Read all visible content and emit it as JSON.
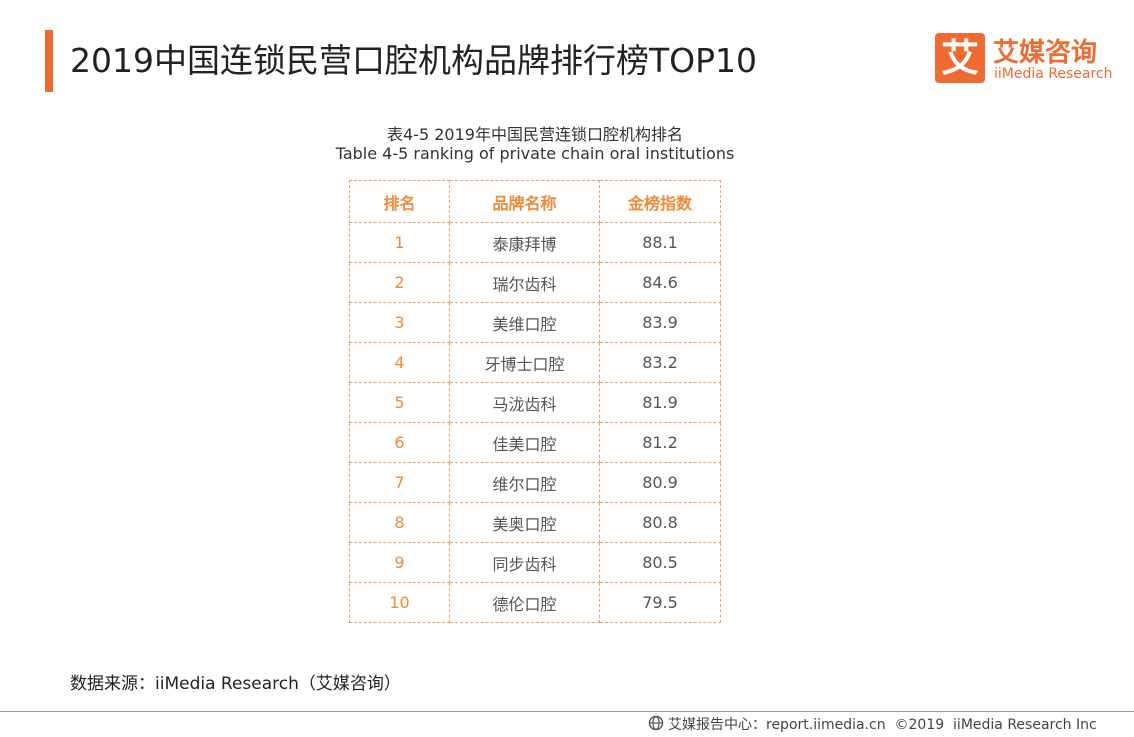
{
  "header": {
    "title": "2019中国连锁民营口腔机构品牌排行榜TOP10",
    "logo": {
      "icon": "艾",
      "name": "艾媒咨询",
      "subname": "iiMedia Research"
    }
  },
  "caption": {
    "zh": "表4-5 2019年中国民营连锁口腔机构排名",
    "en": "Table 4-5 ranking of private chain oral institutions"
  },
  "table": {
    "columns": [
      "排名",
      "品牌名称",
      "金榜指数"
    ],
    "rows": [
      [
        1,
        "泰康拜博",
        88.1
      ],
      [
        2,
        "瑞尔齿科",
        84.6
      ],
      [
        3,
        "美维口腔",
        83.9
      ],
      [
        4,
        "牙博士口腔",
        83.2
      ],
      [
        5,
        "马泷齿科",
        81.9
      ],
      [
        6,
        "佳美口腔",
        81.2
      ],
      [
        7,
        "维尔口腔",
        80.9
      ],
      [
        8,
        "美奥口腔",
        80.8
      ],
      [
        9,
        "同步齿科",
        80.5
      ],
      [
        10,
        "德伦口腔",
        79.5
      ]
    ]
  },
  "source": "数据来源：iiMedia Research（艾媒咨询）",
  "footer": "艾媒报告中心：report.iimedia.cn  ©2019  iiMedia Research Inc"
}
